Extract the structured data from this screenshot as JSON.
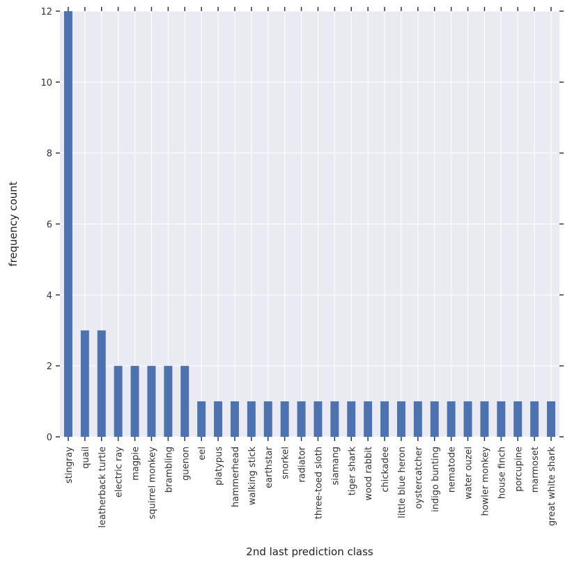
{
  "chart_data": {
    "type": "bar",
    "xlabel": "2nd last prediction class",
    "ylabel": "frequency count",
    "ylim": [
      0,
      12
    ],
    "yticks": [
      0,
      2,
      4,
      6,
      8,
      10,
      12
    ],
    "grid": true,
    "legend": "none",
    "colors": {
      "bar": "#4c72b0",
      "plot_background": "#eaeaf2",
      "grid": "#ffffff",
      "tick": "#333333"
    },
    "categories": [
      "stingray",
      "quail",
      "leatherback turtle",
      "electric ray",
      "magpie",
      "squirrel monkey",
      "brambling",
      "guenon",
      "eel",
      "platypus",
      "hammerhead",
      "walking stick",
      "earthstar",
      "snorkel",
      "radiator",
      "three-toed sloth",
      "siamang",
      "tiger shark",
      "wood rabbit",
      "chickadee",
      "little blue heron",
      "oystercatcher",
      "indigo bunting",
      "nematode",
      "water ouzel",
      "howler monkey",
      "house finch",
      "porcupine",
      "marmoset",
      "great white shark"
    ],
    "values": [
      12,
      3,
      3,
      2,
      2,
      2,
      2,
      2,
      1,
      1,
      1,
      1,
      1,
      1,
      1,
      1,
      1,
      1,
      1,
      1,
      1,
      1,
      1,
      1,
      1,
      1,
      1,
      1,
      1,
      1
    ]
  }
}
